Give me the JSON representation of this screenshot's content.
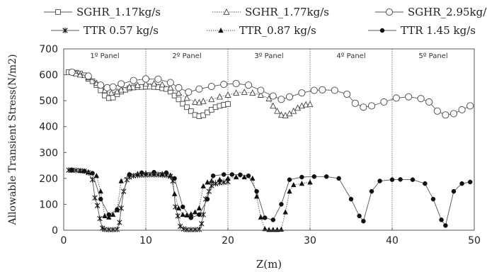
{
  "chart_data": {
    "type": "scatter",
    "xlabel": "Z(m)",
    "ylabel": "Allowable Transient Stress(N/m2)",
    "xlim": [
      0,
      50
    ],
    "ylim": [
      0,
      700
    ],
    "xticks": [
      "0",
      "10",
      "20",
      "30",
      "40",
      "50"
    ],
    "yticks": [
      "0",
      "100",
      "200",
      "300",
      "400",
      "500",
      "600",
      "700"
    ],
    "grid": false,
    "legend_position": "top",
    "panel_lines": [
      10,
      20,
      30,
      40
    ],
    "panels": [
      {
        "label": "1º Panel",
        "x": 5
      },
      {
        "label": "2º Panel",
        "x": 15
      },
      {
        "label": "3º Panel",
        "x": 25
      },
      {
        "label": "4º Panel",
        "x": 35
      },
      {
        "label": "5º Panel",
        "x": 45
      }
    ],
    "series": [
      {
        "name": "SGHR_1.17kg/s",
        "marker": "square",
        "dash": "solid",
        "color": "#555555",
        "points": [
          [
            0.6,
            610
          ],
          [
            1,
            610
          ],
          [
            1.5,
            608
          ],
          [
            2,
            605
          ],
          [
            2.5,
            598
          ],
          [
            3,
            585
          ],
          [
            3.5,
            575
          ],
          [
            4,
            560
          ],
          [
            4.5,
            540
          ],
          [
            5,
            520
          ],
          [
            5.5,
            510
          ],
          [
            6,
            512
          ],
          [
            6.5,
            525
          ],
          [
            7,
            535
          ],
          [
            7.5,
            542
          ],
          [
            8,
            548
          ],
          [
            8.5,
            551
          ],
          [
            9,
            553
          ],
          [
            9.5,
            553
          ],
          [
            10,
            554
          ],
          [
            10.5,
            554
          ],
          [
            11,
            553
          ],
          [
            11.5,
            552
          ],
          [
            12,
            548
          ],
          [
            12.5,
            545
          ],
          [
            13,
            535
          ],
          [
            13.5,
            520
          ],
          [
            14,
            505
          ],
          [
            14.5,
            488
          ],
          [
            15,
            475
          ],
          [
            15.5,
            460
          ],
          [
            16,
            445
          ],
          [
            16.5,
            440
          ],
          [
            17,
            444
          ],
          [
            17.5,
            455
          ],
          [
            18,
            465
          ],
          [
            18.5,
            475
          ],
          [
            19,
            480
          ],
          [
            19.5,
            484
          ],
          [
            20,
            487
          ]
        ]
      },
      {
        "name": "SGHR_1.77kg/s",
        "marker": "triangle",
        "dash": "dotted",
        "color": "#555555",
        "points": [
          [
            1,
            610
          ],
          [
            1.5,
            605
          ],
          [
            2,
            600
          ],
          [
            3,
            590
          ],
          [
            4,
            568
          ],
          [
            5,
            540
          ],
          [
            5.8,
            530
          ],
          [
            6.5,
            535
          ],
          [
            7,
            542
          ],
          [
            8,
            553
          ],
          [
            9,
            560
          ],
          [
            10,
            565
          ],
          [
            11,
            566
          ],
          [
            12,
            562
          ],
          [
            13,
            550
          ],
          [
            14,
            530
          ],
          [
            15,
            510
          ],
          [
            16,
            495
          ],
          [
            16.5,
            493
          ],
          [
            17,
            498
          ],
          [
            18,
            505
          ],
          [
            19,
            515
          ],
          [
            20,
            522
          ],
          [
            21,
            530
          ],
          [
            22,
            533
          ],
          [
            23,
            530
          ],
          [
            24,
            522
          ],
          [
            25,
            508
          ],
          [
            25.5,
            480
          ],
          [
            26,
            460
          ],
          [
            26.5,
            445
          ],
          [
            27,
            443
          ],
          [
            27.5,
            450
          ],
          [
            28,
            460
          ],
          [
            28.5,
            472
          ],
          [
            29,
            480
          ],
          [
            29.5,
            485
          ],
          [
            30,
            486
          ]
        ]
      },
      {
        "name": "SGHR_2.95kg/s",
        "marker": "circle",
        "dash": "solid",
        "color": "#555555",
        "points": [
          [
            1,
            610
          ],
          [
            3,
            595
          ],
          [
            4.5,
            560
          ],
          [
            5.3,
            550
          ],
          [
            6,
            553
          ],
          [
            7,
            565
          ],
          [
            8.5,
            578
          ],
          [
            10,
            584
          ],
          [
            11.5,
            583
          ],
          [
            13,
            570
          ],
          [
            14,
            550
          ],
          [
            15.2,
            533
          ],
          [
            16.5,
            545
          ],
          [
            18,
            555
          ],
          [
            19.5,
            563
          ],
          [
            21,
            566
          ],
          [
            22.5,
            560
          ],
          [
            24,
            540
          ],
          [
            25.5,
            518
          ],
          [
            26.5,
            505
          ],
          [
            27.5,
            515
          ],
          [
            29,
            530
          ],
          [
            30.5,
            540
          ],
          [
            31.5,
            542
          ],
          [
            33,
            540
          ],
          [
            34.5,
            525
          ],
          [
            35.5,
            490
          ],
          [
            36.5,
            475
          ],
          [
            37.5,
            480
          ],
          [
            39,
            495
          ],
          [
            40.5,
            510
          ],
          [
            42,
            515
          ],
          [
            43.5,
            508
          ],
          [
            44.5,
            495
          ],
          [
            45.5,
            460
          ],
          [
            46.5,
            445
          ],
          [
            47.5,
            450
          ],
          [
            48.5,
            465
          ],
          [
            49.5,
            480
          ]
        ]
      },
      {
        "name": "TTR 0.57 kg/s",
        "marker": "star",
        "dash": "solid",
        "color": "#555555",
        "points": [
          [
            0.6,
            232
          ],
          [
            1,
            232
          ],
          [
            1.5,
            231
          ],
          [
            2,
            230
          ],
          [
            2.5,
            228
          ],
          [
            3,
            222
          ],
          [
            3.5,
            195
          ],
          [
            3.8,
            125
          ],
          [
            4.1,
            95
          ],
          [
            4.4,
            45
          ],
          [
            4.7,
            8
          ],
          [
            5,
            3
          ],
          [
            5.5,
            2
          ],
          [
            6,
            2
          ],
          [
            6.5,
            3
          ],
          [
            6.8,
            30
          ],
          [
            7,
            85
          ],
          [
            7.3,
            150
          ],
          [
            7.7,
            195
          ],
          [
            8,
            205
          ],
          [
            8.5,
            210
          ],
          [
            9,
            212
          ],
          [
            9.5,
            213
          ],
          [
            10,
            213
          ],
          [
            10.5,
            214
          ],
          [
            11,
            214
          ],
          [
            11.5,
            214
          ],
          [
            12,
            213
          ],
          [
            12.5,
            212
          ],
          [
            13,
            208
          ],
          [
            13.3,
            190
          ],
          [
            13.6,
            90
          ],
          [
            13.9,
            55
          ],
          [
            14.2,
            15
          ],
          [
            14.6,
            5
          ],
          [
            15,
            2
          ],
          [
            15.5,
            2
          ],
          [
            16,
            2
          ],
          [
            16.5,
            3
          ],
          [
            16.8,
            25
          ],
          [
            17,
            60
          ],
          [
            17.3,
            120
          ],
          [
            17.7,
            150
          ],
          [
            18,
            172
          ],
          [
            18.5,
            180
          ],
          [
            19,
            183
          ],
          [
            19.5,
            185
          ],
          [
            20,
            187
          ]
        ]
      },
      {
        "name": "TTR_0.87 kg/s",
        "marker": "triangle-filled",
        "dash": "dotted",
        "color": "#555555",
        "points": [
          [
            1,
            232
          ],
          [
            2,
            230
          ],
          [
            3,
            225
          ],
          [
            4,
            210
          ],
          [
            4.5,
            150
          ],
          [
            5,
            55
          ],
          [
            5.5,
            50
          ],
          [
            6,
            60
          ],
          [
            6.5,
            78
          ],
          [
            7,
            190
          ],
          [
            8,
            215
          ],
          [
            9,
            218
          ],
          [
            10,
            220
          ],
          [
            11,
            220
          ],
          [
            12,
            218
          ],
          [
            13,
            212
          ],
          [
            13.5,
            140
          ],
          [
            14,
            85
          ],
          [
            14.5,
            60
          ],
          [
            15,
            58
          ],
          [
            15.5,
            62
          ],
          [
            16,
            70
          ],
          [
            16.5,
            85
          ],
          [
            17,
            170
          ],
          [
            17.5,
            185
          ],
          [
            18,
            190
          ],
          [
            19,
            195
          ],
          [
            20,
            200
          ],
          [
            21,
            205
          ],
          [
            22,
            205
          ],
          [
            23,
            200
          ],
          [
            23.5,
            130
          ],
          [
            24,
            50
          ],
          [
            24.5,
            5
          ],
          [
            25,
            2
          ],
          [
            25.5,
            2
          ],
          [
            26,
            2
          ],
          [
            26.5,
            3
          ],
          [
            27,
            70
          ],
          [
            27.5,
            150
          ],
          [
            28,
            175
          ],
          [
            29,
            180
          ],
          [
            30,
            185
          ]
        ]
      },
      {
        "name": "TTR 1.45 kg/s",
        "marker": "circle-filled",
        "dash": "solid",
        "color": "#555555",
        "points": [
          [
            1,
            232
          ],
          [
            2.5,
            228
          ],
          [
            3.5,
            220
          ],
          [
            4.5,
            120
          ],
          [
            5.5,
            60
          ],
          [
            6.5,
            80
          ],
          [
            8,
            215
          ],
          [
            9.5,
            222
          ],
          [
            11,
            224
          ],
          [
            12.5,
            222
          ],
          [
            13.5,
            200
          ],
          [
            14.5,
            90
          ],
          [
            15.5,
            48
          ],
          [
            16.5,
            60
          ],
          [
            17.5,
            120
          ],
          [
            18.2,
            210
          ],
          [
            19.5,
            215
          ],
          [
            20.5,
            215
          ],
          [
            21.5,
            214
          ],
          [
            22.5,
            210
          ],
          [
            23.5,
            150
          ],
          [
            24.5,
            48
          ],
          [
            25.5,
            40
          ],
          [
            26.5,
            100
          ],
          [
            27.5,
            195
          ],
          [
            29,
            205
          ],
          [
            30.5,
            207
          ],
          [
            32,
            207
          ],
          [
            33.5,
            200
          ],
          [
            35,
            120
          ],
          [
            36,
            55
          ],
          [
            36.5,
            35
          ],
          [
            37.5,
            150
          ],
          [
            38.5,
            190
          ],
          [
            40,
            195
          ],
          [
            41,
            196
          ],
          [
            42.5,
            195
          ],
          [
            44,
            180
          ],
          [
            45,
            120
          ],
          [
            46,
            40
          ],
          [
            46.5,
            18
          ],
          [
            47.5,
            150
          ],
          [
            48.5,
            180
          ],
          [
            49.5,
            186
          ]
        ]
      }
    ]
  }
}
